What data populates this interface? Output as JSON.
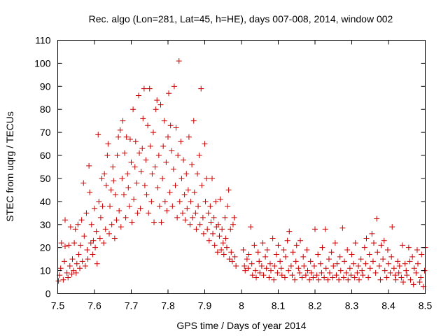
{
  "chart_data": {
    "type": "scatter",
    "title": "Rec. algo (Lon=281, Lat=45, h=HE), days 007-008, 2014, window 002",
    "xlabel": "GPS time / Days of year 2014",
    "ylabel": "STEC from uqrg / TECUs",
    "xlim": [
      7.5,
      8.5
    ],
    "ylim": [
      0,
      110
    ],
    "xticks": [
      7.5,
      7.6,
      7.7,
      7.8,
      7.9,
      8.0,
      8.1,
      8.2,
      8.3,
      8.4,
      8.5
    ],
    "xtick_labels": [
      "7.5",
      "7.6",
      "7.7",
      "7.8",
      "7.9",
      "8",
      "8.1",
      "8.2",
      "8.3",
      "8.4",
      "8.5"
    ],
    "yticks": [
      0,
      10,
      20,
      30,
      40,
      50,
      60,
      70,
      80,
      90,
      100,
      110
    ],
    "ytick_labels": [
      "0",
      "10",
      "20",
      "30",
      "40",
      "50",
      "60",
      "70",
      "80",
      "90",
      "100",
      "110"
    ],
    "marker": "plus",
    "color": "#cc0000",
    "grid": false,
    "points": [
      [
        7.502,
        5.5
      ],
      [
        7.505,
        8
      ],
      [
        7.508,
        11
      ],
      [
        7.51,
        22
      ],
      [
        7.515,
        6
      ],
      [
        7.518,
        14
      ],
      [
        7.52,
        20.5
      ],
      [
        7.52,
        32
      ],
      [
        7.525,
        9
      ],
      [
        7.528,
        7
      ],
      [
        7.53,
        21
      ],
      [
        7.533,
        12
      ],
      [
        7.535,
        29
      ],
      [
        7.538,
        8.5
      ],
      [
        7.54,
        15
      ],
      [
        7.543,
        10
      ],
      [
        7.545,
        22
      ],
      [
        7.548,
        28
      ],
      [
        7.55,
        9
      ],
      [
        7.552,
        13
      ],
      [
        7.555,
        30
      ],
      [
        7.557,
        17
      ],
      [
        7.56,
        11
      ],
      [
        7.562,
        21
      ],
      [
        7.565,
        32
      ],
      [
        7.567,
        14
      ],
      [
        7.57,
        48
      ],
      [
        7.572,
        25
      ],
      [
        7.575,
        12
      ],
      [
        7.578,
        35
      ],
      [
        7.58,
        19
      ],
      [
        7.582,
        15
      ],
      [
        7.585,
        55.5
      ],
      [
        7.587,
        44
      ],
      [
        7.59,
        22
      ],
      [
        7.592,
        30
      ],
      [
        7.595,
        17
      ],
      [
        7.597,
        23
      ],
      [
        7.6,
        37
      ],
      [
        7.602,
        20
      ],
      [
        7.605,
        27
      ],
      [
        7.607,
        13
      ],
      [
        7.61,
        69
      ],
      [
        7.612,
        40
      ],
      [
        7.615,
        24
      ],
      [
        7.617,
        33
      ],
      [
        7.62,
        50
      ],
      [
        7.622,
        38
      ],
      [
        7.625,
        22
      ],
      [
        7.627,
        52
      ],
      [
        7.63,
        28
      ],
      [
        7.632,
        47
      ],
      [
        7.635,
        60
      ],
      [
        7.637,
        65
      ],
      [
        7.64,
        26
      ],
      [
        7.642,
        38
      ],
      [
        7.645,
        45
      ],
      [
        7.647,
        30
      ],
      [
        7.65,
        55
      ],
      [
        7.652,
        49
      ],
      [
        7.655,
        24
      ],
      [
        7.657,
        43
      ],
      [
        7.66,
        32
      ],
      [
        7.662,
        60
      ],
      [
        7.665,
        68
      ],
      [
        7.667,
        36
      ],
      [
        7.67,
        71
      ],
      [
        7.672,
        29
      ],
      [
        7.675,
        50
      ],
      [
        7.677,
        75
      ],
      [
        7.68,
        43
      ],
      [
        7.682,
        61
      ],
      [
        7.685,
        33
      ],
      [
        7.687,
        68
      ],
      [
        7.69,
        52
      ],
      [
        7.692,
        46
      ],
      [
        7.695,
        38
      ],
      [
        7.697,
        67
      ],
      [
        7.7,
        57
      ],
      [
        7.702,
        31
      ],
      [
        7.705,
        80
      ],
      [
        7.707,
        41
      ],
      [
        7.71,
        55
      ],
      [
        7.712,
        66
      ],
      [
        7.715,
        48
      ],
      [
        7.717,
        35
      ],
      [
        7.72,
        86
      ],
      [
        7.722,
        61
      ],
      [
        7.725,
        37
      ],
      [
        7.727,
        53
      ],
      [
        7.73,
        63
      ],
      [
        7.732,
        76
      ],
      [
        7.735,
        89
      ],
      [
        7.737,
        47
      ],
      [
        7.74,
        58
      ],
      [
        7.742,
        43
      ],
      [
        7.745,
        73
      ],
      [
        7.747,
        35
      ],
      [
        7.75,
        89
      ],
      [
        7.752,
        64
      ],
      [
        7.755,
        40
      ],
      [
        7.757,
        52
      ],
      [
        7.76,
        70
      ],
      [
        7.762,
        31
      ],
      [
        7.765,
        55
      ],
      [
        7.767,
        80
      ],
      [
        7.77,
        84
      ],
      [
        7.772,
        46
      ],
      [
        7.775,
        60
      ],
      [
        7.777,
        38
      ],
      [
        7.78,
        82
      ],
      [
        7.782,
        31
      ],
      [
        7.785,
        50
      ],
      [
        7.787,
        64
      ],
      [
        7.79,
        75
      ],
      [
        7.792,
        40
      ],
      [
        7.795,
        57
      ],
      [
        7.797,
        36
      ],
      [
        7.8,
        68
      ],
      [
        7.802,
        87
      ],
      [
        7.805,
        44
      ],
      [
        7.807,
        73
      ],
      [
        7.81,
        62
      ],
      [
        7.812,
        38
      ],
      [
        7.815,
        54
      ],
      [
        7.817,
        90
      ],
      [
        7.82,
        47
      ],
      [
        7.822,
        72
      ],
      [
        7.825,
        33
      ],
      [
        7.827,
        60
      ],
      [
        7.83,
        101
      ],
      [
        7.832,
        40
      ],
      [
        7.835,
        66
      ],
      [
        7.837,
        50
      ],
      [
        7.84,
        35
      ],
      [
        7.842,
        58
      ],
      [
        7.845,
        43
      ],
      [
        7.847,
        32
      ],
      [
        7.85,
        52
      ],
      [
        7.852,
        37
      ],
      [
        7.855,
        45
      ],
      [
        7.857,
        68
      ],
      [
        7.86,
        30
      ],
      [
        7.862,
        40
      ],
      [
        7.865,
        56
      ],
      [
        7.867,
        33
      ],
      [
        7.87,
        75
      ],
      [
        7.872,
        44
      ],
      [
        7.875,
        35
      ],
      [
        7.877,
        28
      ],
      [
        7.88,
        52
      ],
      [
        7.882,
        38
      ],
      [
        7.885,
        60
      ],
      [
        7.887,
        30
      ],
      [
        7.89,
        89
      ],
      [
        7.892,
        47
      ],
      [
        7.895,
        33
      ],
      [
        7.897,
        26
      ],
      [
        7.9,
        65
      ],
      [
        7.902,
        40
      ],
      [
        7.905,
        50
      ],
      [
        7.907,
        28
      ],
      [
        7.91,
        35
      ],
      [
        7.912,
        23
      ],
      [
        7.915,
        38
      ],
      [
        7.917,
        31
      ],
      [
        7.92,
        50
      ],
      [
        7.922,
        26
      ],
      [
        7.925,
        33
      ],
      [
        7.927,
        21
      ],
      [
        7.93,
        40
      ],
      [
        7.932,
        29
      ],
      [
        7.935,
        18
      ],
      [
        7.937,
        30
      ],
      [
        7.94,
        25
      ],
      [
        7.942,
        41
      ],
      [
        7.945,
        19
      ],
      [
        7.947,
        28
      ],
      [
        7.95,
        22
      ],
      [
        7.952,
        17
      ],
      [
        7.955,
        33
      ],
      [
        7.957,
        24
      ],
      [
        7.96,
        20
      ],
      [
        7.962,
        38
      ],
      [
        7.965,
        45
      ],
      [
        7.967,
        15
      ],
      [
        7.97,
        28
      ],
      [
        7.972,
        18
      ],
      [
        7.975,
        14
      ],
      [
        7.977,
        30
      ],
      [
        7.98,
        33
      ],
      [
        7.982,
        16
      ],
      [
        7.985,
        12
      ],
      [
        8.005,
        19
      ],
      [
        8.008,
        12
      ],
      [
        8.01,
        10
      ],
      [
        8.015,
        15
      ],
      [
        8.018,
        11
      ],
      [
        8.02,
        17
      ],
      [
        8.025,
        29
      ],
      [
        8.028,
        13
      ],
      [
        8.03,
        8
      ],
      [
        8.035,
        21
      ],
      [
        8.038,
        10
      ],
      [
        8.04,
        7
      ],
      [
        8.045,
        18
      ],
      [
        8.048,
        14
      ],
      [
        8.05,
        9
      ],
      [
        8.055,
        12
      ],
      [
        8.058,
        22
      ],
      [
        8.06,
        8
      ],
      [
        8.065,
        16
      ],
      [
        8.068,
        11
      ],
      [
        8.07,
        19
      ],
      [
        8.075,
        7
      ],
      [
        8.078,
        13
      ],
      [
        8.08,
        10
      ],
      [
        8.085,
        24
      ],
      [
        8.088,
        6
      ],
      [
        8.09,
        12
      ],
      [
        8.095,
        17
      ],
      [
        8.098,
        9
      ],
      [
        8.1,
        21
      ],
      [
        8.105,
        14
      ],
      [
        8.108,
        11
      ],
      [
        8.11,
        8
      ],
      [
        8.115,
        19
      ],
      [
        8.118,
        7
      ],
      [
        8.12,
        16
      ],
      [
        8.125,
        23
      ],
      [
        8.128,
        10
      ],
      [
        8.13,
        27
      ],
      [
        8.135,
        12
      ],
      [
        8.138,
        8
      ],
      [
        8.14,
        18
      ],
      [
        8.145,
        6
      ],
      [
        8.148,
        14
      ],
      [
        8.15,
        21
      ],
      [
        8.155,
        11
      ],
      [
        8.158,
        9
      ],
      [
        8.16,
        23
      ],
      [
        8.165,
        7
      ],
      [
        8.168,
        16
      ],
      [
        8.17,
        12
      ],
      [
        8.175,
        8
      ],
      [
        8.178,
        19
      ],
      [
        8.18,
        10
      ],
      [
        8.185,
        6
      ],
      [
        8.188,
        14
      ],
      [
        8.19,
        9
      ],
      [
        8.195,
        7
      ],
      [
        8.198,
        12
      ],
      [
        8.2,
        28
      ],
      [
        8.205,
        8
      ],
      [
        8.208,
        17
      ],
      [
        8.21,
        6
      ],
      [
        8.215,
        13
      ],
      [
        8.218,
        9
      ],
      [
        8.22,
        20
      ],
      [
        8.225,
        7
      ],
      [
        8.228,
        28
      ],
      [
        8.23,
        11
      ],
      [
        8.235,
        6
      ],
      [
        8.238,
        15
      ],
      [
        8.24,
        9
      ],
      [
        8.245,
        18
      ],
      [
        8.248,
        7
      ],
      [
        8.25,
        12
      ],
      [
        8.255,
        22
      ],
      [
        8.258,
        8
      ],
      [
        8.26,
        13
      ],
      [
        8.265,
        6
      ],
      [
        8.268,
        16
      ],
      [
        8.27,
        10
      ],
      [
        8.275,
        28.5
      ],
      [
        8.278,
        7
      ],
      [
        8.28,
        14
      ],
      [
        8.285,
        9
      ],
      [
        8.288,
        19
      ],
      [
        8.29,
        6
      ],
      [
        8.295,
        11
      ],
      [
        8.298,
        8
      ],
      [
        8.3,
        17
      ],
      [
        8.305,
        13
      ],
      [
        8.308,
        7
      ],
      [
        8.31,
        22
      ],
      [
        8.315,
        9
      ],
      [
        8.318,
        12
      ],
      [
        8.32,
        6
      ],
      [
        8.325,
        15
      ],
      [
        8.328,
        10
      ],
      [
        8.33,
        8
      ],
      [
        8.335,
        20
      ],
      [
        8.338,
        13
      ],
      [
        8.34,
        24
      ],
      [
        8.345,
        7
      ],
      [
        8.348,
        17
      ],
      [
        8.35,
        11
      ],
      [
        8.355,
        26
      ],
      [
        8.358,
        14
      ],
      [
        8.36,
        22
      ],
      [
        8.365,
        9
      ],
      [
        8.368,
        32.5
      ],
      [
        8.37,
        18
      ],
      [
        8.375,
        12
      ],
      [
        8.378,
        6
      ],
      [
        8.38,
        21
      ],
      [
        8.385,
        15
      ],
      [
        8.388,
        23
      ],
      [
        8.39,
        10
      ],
      [
        8.395,
        7
      ],
      [
        8.398,
        19
      ],
      [
        8.4,
        13
      ],
      [
        8.405,
        9
      ],
      [
        8.408,
        16
      ],
      [
        8.41,
        29
      ],
      [
        8.415,
        11
      ],
      [
        8.418,
        8
      ],
      [
        8.42,
        6
      ],
      [
        8.425,
        14
      ],
      [
        8.428,
        9
      ],
      [
        8.43,
        12
      ],
      [
        8.435,
        7
      ],
      [
        8.438,
        21
      ],
      [
        8.44,
        5
      ],
      [
        8.445,
        13
      ],
      [
        8.448,
        10
      ],
      [
        8.45,
        8
      ],
      [
        8.455,
        20
      ],
      [
        8.458,
        14
      ],
      [
        8.46,
        6
      ],
      [
        8.465,
        16
      ],
      [
        8.468,
        4
      ],
      [
        8.47,
        11
      ],
      [
        8.475,
        9
      ],
      [
        8.478,
        19
      ],
      [
        8.48,
        13
      ],
      [
        8.485,
        5
      ],
      [
        8.488,
        7
      ],
      [
        8.49,
        17
      ],
      [
        8.495,
        3
      ],
      [
        8.498,
        10
      ],
      [
        8.5,
        20
      ]
    ]
  }
}
